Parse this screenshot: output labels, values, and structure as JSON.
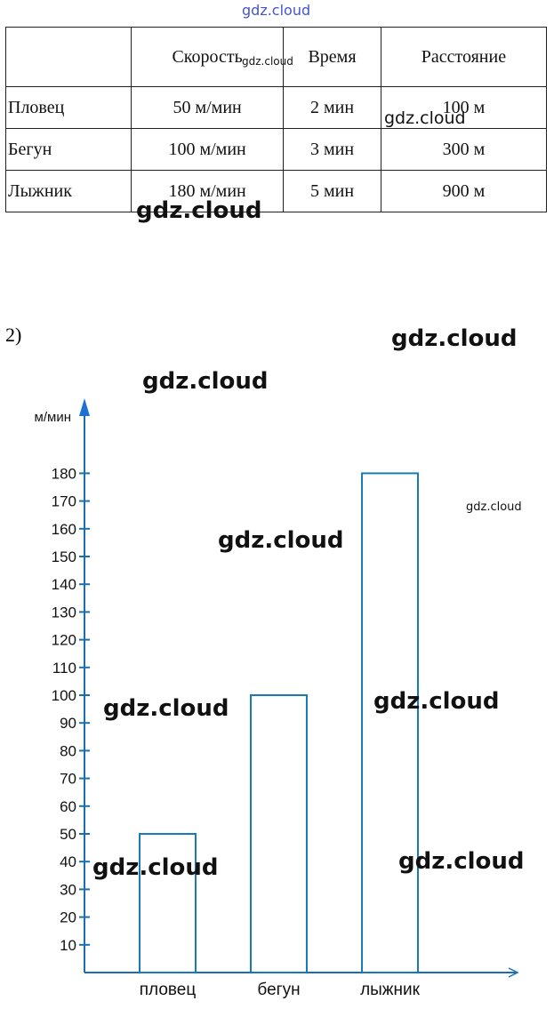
{
  "table": {
    "headers": [
      "",
      "Скорость",
      "Время",
      "Расстояние"
    ],
    "rows": [
      [
        "Пловец",
        "50 м/мин",
        "2 мин",
        "100 м"
      ],
      [
        "Бегун",
        "100 м/мин",
        "3 мин",
        "300 м"
      ],
      [
        "Лыжник",
        "180 м/мин",
        "5 мин",
        "900 м"
      ]
    ]
  },
  "part_label": "2)",
  "watermarks": [
    "gdz.cloud",
    "gdz.cloud",
    "gdz.cloud",
    "gdz.cloud",
    "gdz.cloud",
    "gdz.cloud",
    "gdz.cloud",
    "gdz.cloud",
    "gdz.cloud",
    "gdz.cloud",
    "gdz.cloud"
  ],
  "chart_data": {
    "type": "bar",
    "ylabel": "м/мин",
    "categories": [
      "пловец",
      "бегун",
      "лыжник"
    ],
    "values": [
      50,
      100,
      180
    ],
    "ylim": [
      0,
      190
    ],
    "yticks": [
      10,
      20,
      30,
      40,
      50,
      60,
      70,
      80,
      90,
      100,
      110,
      120,
      130,
      140,
      150,
      160,
      170,
      180
    ],
    "grid": false,
    "axis_color": "#1a6fb0",
    "bar_outline": "#1a7ab8"
  }
}
